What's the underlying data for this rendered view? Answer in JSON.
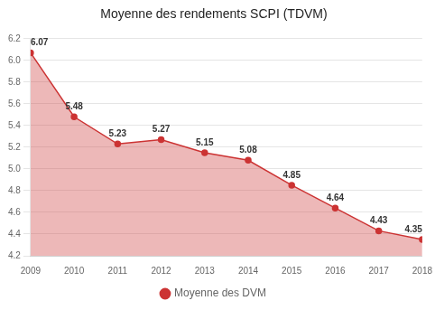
{
  "chart_data": {
    "type": "area",
    "title": "Moyenne des rendements SCPI (TDVM)",
    "x": [
      2009,
      2010,
      2011,
      2012,
      2013,
      2014,
      2015,
      2016,
      2017,
      2018
    ],
    "series": [
      {
        "name": "Moyenne des DVM",
        "color": "#cc3333",
        "marker": "circle",
        "values": [
          6.07,
          5.48,
          5.23,
          5.27,
          5.15,
          5.08,
          4.85,
          4.64,
          4.43,
          4.35
        ]
      }
    ],
    "xlim": [
      2009,
      2018
    ],
    "xticks": [
      2009,
      2010,
      2011,
      2012,
      2013,
      2014,
      2015,
      2016,
      2017,
      2018
    ],
    "ylim": [
      4.2,
      6.2
    ],
    "yticks": [
      4.2,
      4.4,
      4.6,
      4.8,
      {
        "value": 5,
        "label": "5.0"
      },
      5.2,
      5.4,
      5.6,
      5.8,
      {
        "value": 6,
        "label": "6.0"
      },
      6.2
    ],
    "grid": true,
    "legend": "bottom",
    "data_labels": true
  }
}
